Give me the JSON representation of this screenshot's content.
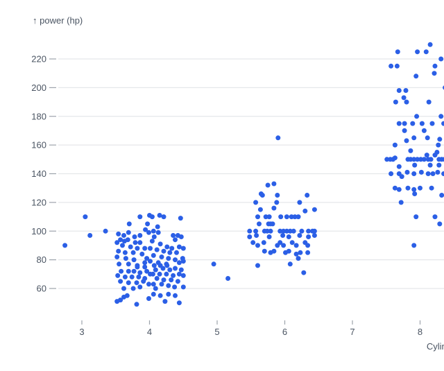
{
  "chart_data": {
    "type": "scatter",
    "title": "",
    "ylabel": "↑ power (hp)",
    "xlabel": "Cylinders",
    "x_field": "Cylinders",
    "y_field": "power (hp)",
    "x_ticks": [
      3,
      4,
      5,
      6,
      7,
      8
    ],
    "y_ticks": [
      60,
      80,
      100,
      120,
      140,
      160,
      180,
      200,
      220
    ],
    "x_domain": [
      2.5,
      8.7
    ],
    "y_domain": [
      44,
      235
    ],
    "grid": "horizontal",
    "legend": "none",
    "jitter": "x jittered around integer cylinder counts",
    "colors": {
      "dot": "#2b5fe6",
      "grid": "#e5e7ea",
      "tick": "#9ca3ab",
      "text": "#4a5462"
    },
    "points": [
      [
        2.75,
        90
      ],
      [
        3.05,
        110
      ],
      [
        3.12,
        97
      ],
      [
        3.35,
        100
      ],
      [
        3.86,
        110
      ],
      [
        4.0,
        111
      ],
      [
        3.7,
        105
      ],
      [
        3.97,
        105
      ],
      [
        4.04,
        110
      ],
      [
        3.94,
        101
      ],
      [
        3.54,
        98
      ],
      [
        3.62,
        97
      ],
      [
        3.69,
        99
      ],
      [
        3.78,
        96
      ],
      [
        3.86,
        97
      ],
      [
        3.99,
        99
      ],
      [
        3.57,
        94
      ],
      [
        3.52,
        92
      ],
      [
        3.63,
        93
      ],
      [
        3.68,
        94
      ],
      [
        3.6,
        90
      ],
      [
        3.79,
        92
      ],
      [
        3.86,
        92
      ],
      [
        3.72,
        89
      ],
      [
        3.82,
        88
      ],
      [
        3.93,
        88
      ],
      [
        4.01,
        88
      ],
      [
        3.54,
        86
      ],
      [
        3.64,
        85
      ],
      [
        3.76,
        85
      ],
      [
        3.89,
        84
      ],
      [
        3.52,
        82
      ],
      [
        3.65,
        81
      ],
      [
        3.77,
        80
      ],
      [
        3.96,
        81
      ],
      [
        4.01,
        79
      ],
      [
        3.55,
        77
      ],
      [
        3.69,
        77
      ],
      [
        3.82,
        76
      ],
      [
        3.93,
        78
      ],
      [
        4.15,
        111
      ],
      [
        4.21,
        110
      ],
      [
        4.46,
        109
      ],
      [
        4.12,
        103
      ],
      [
        4.06,
        100
      ],
      [
        4.13,
        99
      ],
      [
        4.07,
        96
      ],
      [
        4.35,
        97
      ],
      [
        4.42,
        97
      ],
      [
        4.47,
        96
      ],
      [
        4.38,
        94
      ],
      [
        4.04,
        93
      ],
      [
        4.16,
        91
      ],
      [
        4.26,
        89
      ],
      [
        4.33,
        88
      ],
      [
        4.44,
        89
      ],
      [
        4.5,
        88
      ],
      [
        4.11,
        87
      ],
      [
        4.21,
        86
      ],
      [
        4.3,
        85
      ],
      [
        4.4,
        85
      ],
      [
        4.06,
        83
      ],
      [
        4.18,
        82
      ],
      [
        4.28,
        81
      ],
      [
        4.38,
        80
      ],
      [
        4.49,
        81
      ],
      [
        4.13,
        78
      ],
      [
        4.25,
        77
      ],
      [
        4.44,
        78
      ],
      [
        4.5,
        79
      ],
      [
        3.82,
        75
      ],
      [
        3.93,
        75
      ],
      [
        3.58,
        72
      ],
      [
        3.69,
        72
      ],
      [
        3.77,
        72
      ],
      [
        3.86,
        71
      ],
      [
        3.96,
        72
      ],
      [
        4.01,
        70
      ],
      [
        3.53,
        69
      ],
      [
        3.64,
        68
      ],
      [
        3.74,
        68
      ],
      [
        3.84,
        68
      ],
      [
        3.93,
        67
      ],
      [
        3.57,
        65
      ],
      [
        3.69,
        64
      ],
      [
        3.81,
        64
      ],
      [
        3.91,
        65
      ],
      [
        3.99,
        63
      ],
      [
        3.62,
        60
      ],
      [
        3.76,
        60
      ],
      [
        3.86,
        61
      ],
      [
        3.67,
        55
      ],
      [
        3.62,
        54
      ],
      [
        3.57,
        52
      ],
      [
        3.52,
        51
      ],
      [
        3.81,
        49
      ],
      [
        3.99,
        53
      ],
      [
        4.07,
        76
      ],
      [
        4.16,
        76
      ],
      [
        4.26,
        76
      ],
      [
        4.09,
        73
      ],
      [
        4.2,
        74
      ],
      [
        4.3,
        73
      ],
      [
        4.38,
        74
      ],
      [
        4.47,
        73
      ],
      [
        4.05,
        70
      ],
      [
        4.15,
        70
      ],
      [
        4.25,
        70
      ],
      [
        4.35,
        69
      ],
      [
        4.44,
        70
      ],
      [
        4.5,
        69
      ],
      [
        4.11,
        67
      ],
      [
        4.21,
        66
      ],
      [
        4.32,
        66
      ],
      [
        4.42,
        65
      ],
      [
        4.06,
        63
      ],
      [
        4.18,
        63
      ],
      [
        4.28,
        62
      ],
      [
        4.09,
        60
      ],
      [
        4.37,
        61
      ],
      [
        4.5,
        61
      ],
      [
        4.06,
        56
      ],
      [
        4.16,
        55
      ],
      [
        4.28,
        56
      ],
      [
        4.38,
        55
      ],
      [
        4.23,
        51
      ],
      [
        4.44,
        50
      ],
      [
        4.95,
        77
      ],
      [
        5.16,
        67
      ],
      [
        5.9,
        165
      ],
      [
        5.75,
        132
      ],
      [
        5.84,
        133
      ],
      [
        5.65,
        126
      ],
      [
        5.67,
        125
      ],
      [
        5.89,
        125
      ],
      [
        6.33,
        125
      ],
      [
        5.57,
        120
      ],
      [
        5.88,
        120
      ],
      [
        6.22,
        120
      ],
      [
        5.64,
        115
      ],
      [
        5.84,
        116
      ],
      [
        6.3,
        114
      ],
      [
        6.44,
        115
      ],
      [
        5.6,
        110
      ],
      [
        5.72,
        110
      ],
      [
        5.77,
        110
      ],
      [
        5.94,
        110
      ],
      [
        6.03,
        110
      ],
      [
        6.1,
        110
      ],
      [
        6.15,
        110
      ],
      [
        6.2,
        110
      ],
      [
        5.62,
        105
      ],
      [
        5.76,
        105
      ],
      [
        5.79,
        105
      ],
      [
        5.82,
        105
      ],
      [
        5.48,
        100
      ],
      [
        5.57,
        100
      ],
      [
        5.7,
        100
      ],
      [
        5.74,
        100
      ],
      [
        5.79,
        100
      ],
      [
        5.93,
        100
      ],
      [
        5.98,
        100
      ],
      [
        6.03,
        100
      ],
      [
        6.08,
        100
      ],
      [
        6.13,
        100
      ],
      [
        6.25,
        100
      ],
      [
        6.35,
        100
      ],
      [
        6.41,
        100
      ],
      [
        6.44,
        100
      ],
      [
        5.48,
        96
      ],
      [
        5.58,
        97
      ],
      [
        5.77,
        96
      ],
      [
        5.97,
        97
      ],
      [
        6.06,
        96
      ],
      [
        6.22,
        97
      ],
      [
        6.35,
        96
      ],
      [
        6.44,
        97
      ],
      [
        5.53,
        92
      ],
      [
        5.6,
        90
      ],
      [
        5.69,
        92
      ],
      [
        5.89,
        90
      ],
      [
        5.93,
        92
      ],
      [
        5.98,
        90
      ],
      [
        6.11,
        92
      ],
      [
        6.17,
        90
      ],
      [
        6.3,
        92
      ],
      [
        6.34,
        90
      ],
      [
        5.7,
        86
      ],
      [
        5.79,
        85
      ],
      [
        5.84,
        86
      ],
      [
        6.01,
        85
      ],
      [
        6.06,
        86
      ],
      [
        6.23,
        85
      ],
      [
        6.34,
        85
      ],
      [
        6.17,
        84
      ],
      [
        6.2,
        81
      ],
      [
        6.08,
        77
      ],
      [
        5.6,
        76
      ],
      [
        6.28,
        71
      ],
      [
        8.15,
        230
      ],
      [
        7.67,
        225
      ],
      [
        7.96,
        225
      ],
      [
        8.09,
        225
      ],
      [
        8.31,
        220
      ],
      [
        7.57,
        215
      ],
      [
        7.66,
        215
      ],
      [
        8.22,
        215
      ],
      [
        8.21,
        210
      ],
      [
        7.94,
        208
      ],
      [
        8.37,
        200
      ],
      [
        7.69,
        198
      ],
      [
        7.79,
        198
      ],
      [
        7.76,
        193
      ],
      [
        7.64,
        190
      ],
      [
        7.8,
        190
      ],
      [
        8.13,
        190
      ],
      [
        7.95,
        180
      ],
      [
        8.31,
        180
      ],
      [
        8.41,
        180
      ],
      [
        8.49,
        180
      ],
      [
        7.69,
        175
      ],
      [
        7.77,
        175
      ],
      [
        7.89,
        175
      ],
      [
        8.03,
        175
      ],
      [
        8.18,
        175
      ],
      [
        8.35,
        175
      ],
      [
        7.77,
        170
      ],
      [
        8.06,
        170
      ],
      [
        7.91,
        165
      ],
      [
        8.11,
        165
      ],
      [
        7.8,
        163
      ],
      [
        8.29,
        164
      ],
      [
        7.63,
        160
      ],
      [
        8.27,
        160
      ],
      [
        7.86,
        156
      ],
      [
        8.1,
        153
      ],
      [
        8.22,
        153
      ],
      [
        8.25,
        155
      ],
      [
        7.51,
        150
      ],
      [
        7.56,
        150
      ],
      [
        7.6,
        150
      ],
      [
        7.63,
        151
      ],
      [
        7.82,
        150
      ],
      [
        7.86,
        150
      ],
      [
        7.91,
        150
      ],
      [
        7.96,
        150
      ],
      [
        8.01,
        150
      ],
      [
        8.06,
        150
      ],
      [
        8.12,
        150
      ],
      [
        8.16,
        150
      ],
      [
        8.28,
        150
      ],
      [
        8.32,
        150
      ],
      [
        8.36,
        150
      ],
      [
        8.4,
        150
      ],
      [
        8.49,
        150
      ],
      [
        8.53,
        150
      ],
      [
        7.69,
        145
      ],
      [
        7.92,
        146
      ],
      [
        8.15,
        146
      ],
      [
        8.28,
        146
      ],
      [
        8.4,
        146
      ],
      [
        7.57,
        140
      ],
      [
        7.69,
        140
      ],
      [
        7.81,
        141
      ],
      [
        7.91,
        140
      ],
      [
        8.02,
        141
      ],
      [
        8.12,
        140
      ],
      [
        8.19,
        140
      ],
      [
        8.26,
        141
      ],
      [
        8.35,
        140
      ],
      [
        7.73,
        138
      ],
      [
        7.63,
        130
      ],
      [
        7.69,
        129
      ],
      [
        7.82,
        130
      ],
      [
        7.91,
        129
      ],
      [
        8.0,
        130
      ],
      [
        8.17,
        130
      ],
      [
        7.92,
        126
      ],
      [
        8.32,
        125
      ],
      [
        7.72,
        120
      ],
      [
        7.94,
        110
      ],
      [
        8.22,
        110
      ],
      [
        8.43,
        110
      ],
      [
        8.29,
        105
      ],
      [
        7.91,
        90
      ]
    ]
  }
}
